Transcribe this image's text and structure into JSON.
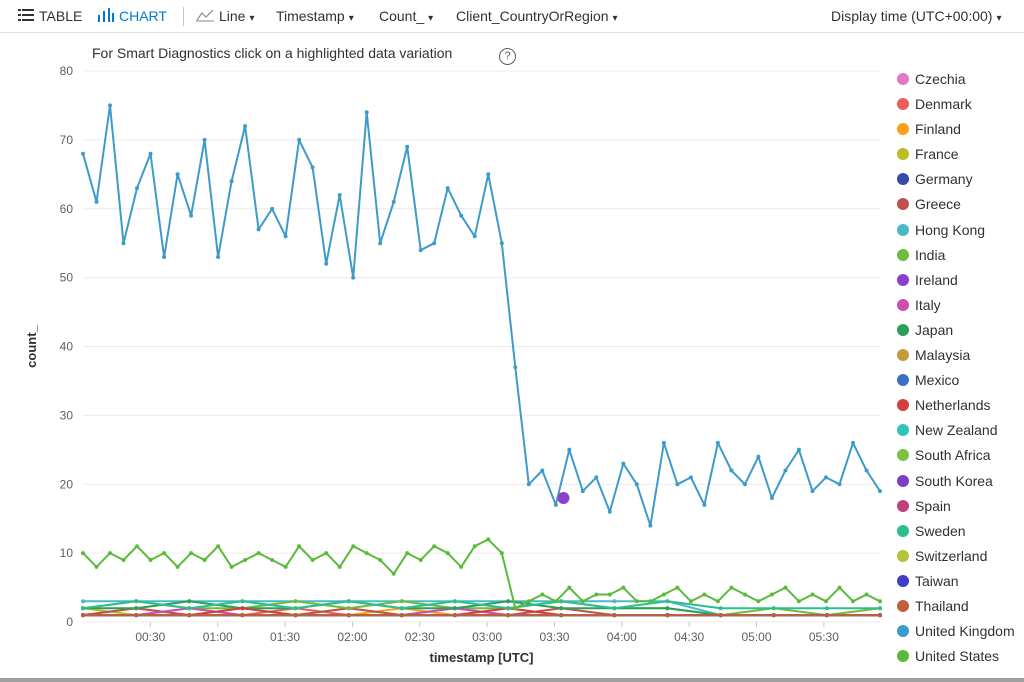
{
  "toolbar": {
    "table_label": "TABLE",
    "chart_label": "CHART",
    "chart_type": "Line",
    "x_field": "Timestamp",
    "y_field": "Count_",
    "split_field": "Client_CountryOrRegion",
    "display_time": "Display time (UTC+00:00)"
  },
  "smart_diagnostics": "For Smart Diagnostics click on a highlighted data variation",
  "help_label": "?",
  "chart_data": {
    "type": "line",
    "xlabel": "timestamp [UTC]",
    "ylabel": "count_",
    "ylim": [
      0,
      80
    ],
    "xlim": [
      "00:00",
      "05:55"
    ],
    "y_ticks": [
      "0",
      "10",
      "20",
      "30",
      "40",
      "50",
      "60",
      "70",
      "80"
    ],
    "x_ticks": [
      "00:30",
      "01:00",
      "01:30",
      "02:00",
      "02:30",
      "03:00",
      "03:30",
      "04:00",
      "04:30",
      "05:00",
      "05:30"
    ],
    "grid": "horizontal",
    "legend_position": "right",
    "highlighted_point": {
      "x": "03:34",
      "y": 18,
      "color": "#8b3fcf"
    },
    "series": [
      {
        "name": "Czechia",
        "color": "#e377c2",
        "values": [
          1,
          1,
          1,
          1,
          1,
          1,
          1,
          1,
          1,
          1,
          1,
          1,
          1,
          1,
          1,
          1
        ]
      },
      {
        "name": "Denmark",
        "color": "#ef5b5b",
        "values": [
          1,
          2,
          1,
          1,
          2,
          1,
          1,
          2,
          1,
          1,
          1,
          1,
          1,
          1,
          1,
          1
        ]
      },
      {
        "name": "Finland",
        "color": "#ff9f1c",
        "values": [
          1,
          1,
          2,
          1,
          1,
          1,
          2,
          1,
          1,
          1,
          1,
          1,
          1,
          1,
          1,
          1
        ]
      },
      {
        "name": "France",
        "color": "#bcbd22",
        "values": [
          2,
          1,
          1,
          2,
          1,
          2,
          1,
          1,
          2,
          1,
          1,
          1,
          1,
          1,
          1,
          1
        ]
      },
      {
        "name": "Germany",
        "color": "#3949ab",
        "values": [
          1,
          1,
          1,
          1,
          1,
          1,
          1,
          1,
          1,
          1,
          1,
          1,
          1,
          1,
          1,
          1
        ]
      },
      {
        "name": "Greece",
        "color": "#c0504d",
        "values": [
          1,
          2,
          1,
          1,
          1,
          2,
          1,
          1,
          1,
          2,
          1,
          1,
          1,
          1,
          1,
          1
        ]
      },
      {
        "name": "Hong Kong",
        "color": "#4ab8c9",
        "values": [
          3,
          3,
          3,
          3,
          3,
          3,
          3,
          3,
          3,
          3,
          3,
          3,
          1,
          1,
          1,
          1
        ]
      },
      {
        "name": "India",
        "color": "#6dbb3f",
        "values": [
          2,
          3,
          2,
          2,
          3,
          2,
          3,
          2,
          2,
          3,
          2,
          2,
          1,
          2,
          1,
          2
        ]
      },
      {
        "name": "Ireland",
        "color": "#8b3fcf",
        "values": [
          1,
          1,
          1,
          1,
          1,
          1,
          1,
          1,
          1,
          1,
          1,
          1,
          1,
          1,
          1,
          1
        ]
      },
      {
        "name": "Italy",
        "color": "#c94fb0",
        "values": [
          1,
          1,
          2,
          1,
          1,
          1,
          1,
          2,
          1,
          1,
          1,
          1,
          1,
          1,
          1,
          1
        ]
      },
      {
        "name": "Japan",
        "color": "#2ca05a",
        "values": [
          2,
          2,
          3,
          2,
          2,
          3,
          2,
          2,
          3,
          2,
          2,
          2,
          1,
          1,
          1,
          1
        ]
      },
      {
        "name": "Malaysia",
        "color": "#c49a3c",
        "values": [
          1,
          1,
          1,
          1,
          1,
          1,
          1,
          1,
          1,
          1,
          1,
          1,
          1,
          1,
          1,
          1
        ]
      },
      {
        "name": "Mexico",
        "color": "#3e6fc7",
        "values": [
          1,
          1,
          1,
          1,
          1,
          1,
          1,
          1,
          1,
          1,
          1,
          1,
          1,
          1,
          1,
          1
        ]
      },
      {
        "name": "Netherlands",
        "color": "#d13f3f",
        "values": [
          1,
          1,
          1,
          2,
          1,
          1,
          1,
          1,
          2,
          1,
          1,
          1,
          1,
          1,
          1,
          1
        ]
      },
      {
        "name": "New Zealand",
        "color": "#2ec4b6",
        "values": [
          1,
          1,
          1,
          1,
          1,
          1,
          1,
          1,
          1,
          1,
          1,
          1,
          1,
          1,
          1,
          1
        ]
      },
      {
        "name": "South Africa",
        "color": "#7cc242",
        "values": [
          1,
          1,
          1,
          1,
          1,
          1,
          1,
          1,
          1,
          1,
          1,
          1,
          1,
          1,
          1,
          1
        ]
      },
      {
        "name": "South Korea",
        "color": "#7b3fc4",
        "values": [
          1,
          1,
          1,
          1,
          1,
          1,
          1,
          1,
          1,
          1,
          1,
          1,
          1,
          1,
          1,
          1
        ]
      },
      {
        "name": "Spain",
        "color": "#c2407a",
        "values": [
          1,
          1,
          1,
          1,
          1,
          1,
          1,
          1,
          1,
          1,
          1,
          1,
          1,
          1,
          1,
          1
        ]
      },
      {
        "name": "Sweden",
        "color": "#2dbf8a",
        "values": [
          2,
          3,
          2,
          3,
          2,
          3,
          2,
          3,
          2,
          3,
          2,
          3,
          2,
          2,
          2,
          2
        ]
      },
      {
        "name": "Switzerland",
        "color": "#b5c334",
        "values": [
          1,
          1,
          1,
          1,
          1,
          1,
          1,
          1,
          1,
          1,
          1,
          1,
          1,
          1,
          1,
          1
        ]
      },
      {
        "name": "Taiwan",
        "color": "#3f3fc4",
        "values": [
          1,
          1,
          1,
          1,
          1,
          1,
          1,
          1,
          1,
          1,
          1,
          1,
          1,
          1,
          1,
          1
        ]
      },
      {
        "name": "Thailand",
        "color": "#c0603a",
        "values": [
          1,
          1,
          1,
          1,
          1,
          1,
          1,
          1,
          1,
          1,
          1,
          1,
          1,
          1,
          1,
          1
        ]
      },
      {
        "name": "United Kingdom",
        "color": "#3d9bc9",
        "values": [
          68,
          61,
          75,
          55,
          63,
          68,
          53,
          65,
          59,
          70,
          53,
          64,
          72,
          57,
          60,
          56,
          70,
          66,
          52,
          62,
          50,
          74,
          55,
          61,
          69,
          54,
          55,
          63,
          59,
          56,
          65,
          55,
          37,
          20,
          22,
          17,
          25,
          19,
          21,
          16,
          23,
          20,
          14,
          26,
          20,
          21,
          17,
          26,
          22,
          20,
          24,
          18,
          22,
          25,
          19,
          21,
          20,
          26,
          22,
          19
        ]
      },
      {
        "name": "United States",
        "color": "#5aba3b",
        "values": [
          10,
          8,
          10,
          9,
          11,
          9,
          10,
          8,
          10,
          9,
          11,
          8,
          9,
          10,
          9,
          8,
          11,
          9,
          10,
          8,
          11,
          10,
          9,
          7,
          10,
          9,
          11,
          10,
          8,
          11,
          12,
          10,
          2,
          3,
          4,
          3,
          5,
          3,
          4,
          4,
          5,
          3,
          3,
          4,
          5,
          3,
          4,
          3,
          5,
          4,
          3,
          4,
          5,
          3,
          4,
          3,
          5,
          3,
          4,
          3
        ]
      }
    ]
  }
}
